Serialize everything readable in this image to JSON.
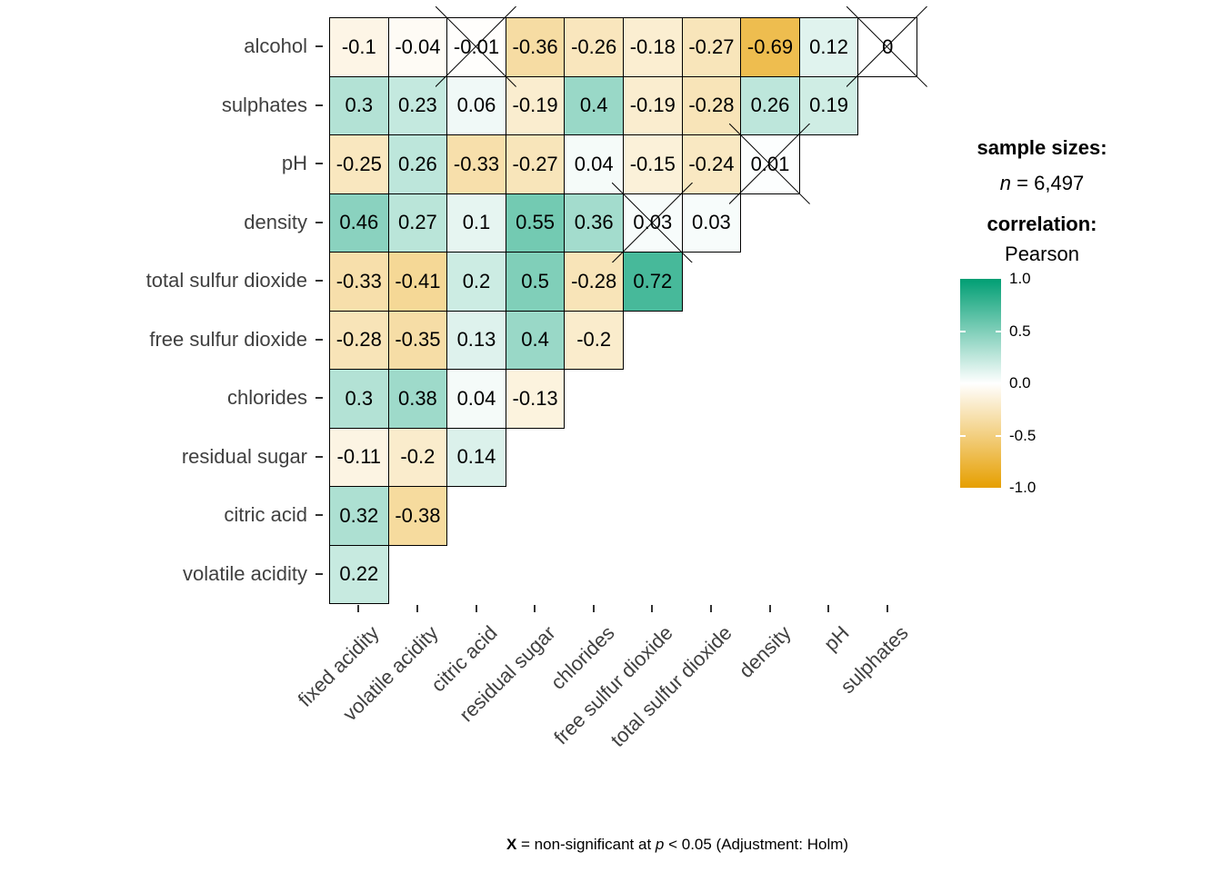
{
  "chart_data": {
    "type": "heatmap",
    "title": "",
    "xlabel": "",
    "ylabel": "",
    "x_categories": [
      "fixed acidity",
      "volatile acidity",
      "citric acid",
      "residual sugar",
      "chlorides",
      "free sulfur dioxide",
      "total sulfur dioxide",
      "density",
      "pH",
      "sulphates"
    ],
    "y_categories": [
      "alcohol",
      "sulphates",
      "pH",
      "density",
      "total sulfur dioxide",
      "free sulfur dioxide",
      "chlorides",
      "residual sugar",
      "citric acid",
      "volatile acidity"
    ],
    "rows": [
      {
        "y": "alcohol",
        "values": [
          "-0.1",
          "-0.04",
          "-0.01",
          "-0.36",
          "-0.26",
          "-0.18",
          "-0.27",
          "-0.69",
          "0.12",
          "0"
        ],
        "x_marks": [
          2,
          9
        ]
      },
      {
        "y": "sulphates",
        "values": [
          "0.3",
          "0.23",
          "0.06",
          "-0.19",
          "0.4",
          "-0.19",
          "-0.28",
          "0.26",
          "0.19"
        ],
        "x_marks": []
      },
      {
        "y": "pH",
        "values": [
          "-0.25",
          "0.26",
          "-0.33",
          "-0.27",
          "0.04",
          "-0.15",
          "-0.24",
          "0.01"
        ],
        "x_marks": [
          7
        ]
      },
      {
        "y": "density",
        "values": [
          "0.46",
          "0.27",
          "0.1",
          "0.55",
          "0.36",
          "0.03",
          "0.03"
        ],
        "x_marks": [
          5
        ]
      },
      {
        "y": "total sulfur dioxide",
        "values": [
          "-0.33",
          "-0.41",
          "0.2",
          "0.5",
          "-0.28",
          "0.72"
        ],
        "x_marks": []
      },
      {
        "y": "free sulfur dioxide",
        "values": [
          "-0.28",
          "-0.35",
          "0.13",
          "0.4",
          "-0.2"
        ],
        "x_marks": []
      },
      {
        "y": "chlorides",
        "values": [
          "0.3",
          "0.38",
          "0.04",
          "-0.13"
        ],
        "x_marks": []
      },
      {
        "y": "residual sugar",
        "values": [
          "-0.11",
          "-0.2",
          "0.14"
        ],
        "x_marks": []
      },
      {
        "y": "citric acid",
        "values": [
          "0.32",
          "-0.38"
        ],
        "x_marks": []
      },
      {
        "y": "volatile acidity",
        "values": [
          "0.22"
        ],
        "x_marks": []
      }
    ],
    "color_scale": {
      "min": -1.0,
      "max": 1.0,
      "negative_color": "#E69F00",
      "mid_color": "#FFFFFF",
      "positive_color": "#009E73",
      "cell_border_color": "#000000",
      "axis_text_color": "#404040"
    },
    "legend": {
      "sample_sizes_title": "sample sizes:",
      "n_symbol": "n",
      "n_value": " = 6,497",
      "correlation_title": "correlation:",
      "method": "Pearson",
      "colorbar_ticks": [
        "1.0",
        "0.5",
        "0.0",
        "-0.5",
        "-1.0"
      ]
    },
    "caption": {
      "bold_x": "X",
      "text1": " = non-significant at ",
      "p_symbol": "p",
      "text2": " < 0.05 (Adjustment: Holm)"
    }
  }
}
